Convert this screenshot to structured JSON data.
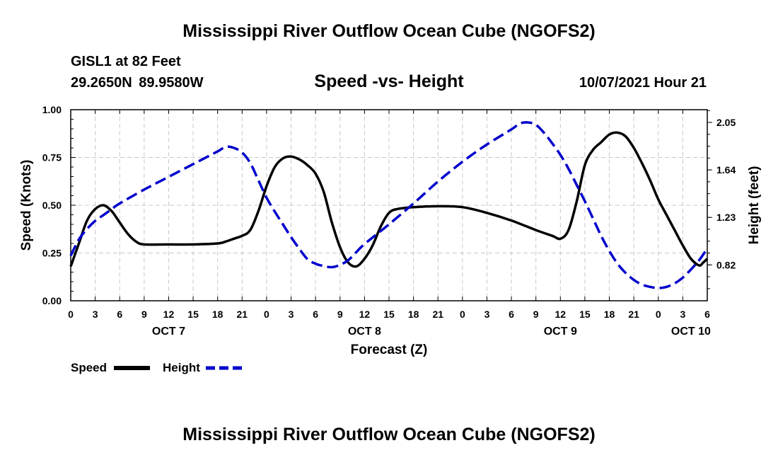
{
  "header": {
    "title": "Mississippi River Outflow Ocean Cube (NGOFS2)",
    "station": "GISL1 at 82 Feet",
    "coordinates": "29.2650N  89.9580W",
    "subtitle": "Speed -vs- Height",
    "datetime": "10/07/2021 Hour 21"
  },
  "footer": {
    "title": "Mississippi River Outflow Ocean Cube (NGOFS2)"
  },
  "chart_data": {
    "type": "line",
    "xlabel": "Forecast (Z)",
    "ylabel": "Speed (Knots)",
    "y2label": "Height (feet)",
    "x_range_hours": [
      0,
      78
    ],
    "ylim": [
      0,
      1
    ],
    "y2lim": [
      0.51,
      2.16
    ],
    "grid": true,
    "x_tick_hours": [
      0,
      3,
      6,
      9,
      12,
      15,
      18,
      21,
      24,
      27,
      30,
      33,
      36,
      39,
      42,
      45,
      48,
      51,
      54,
      57,
      60,
      63,
      66,
      69,
      72,
      75,
      78
    ],
    "x_tick_labels": [
      "0",
      "3",
      "6",
      "9",
      "12",
      "15",
      "18",
      "21",
      "0",
      "3",
      "6",
      "9",
      "12",
      "15",
      "18",
      "21",
      "0",
      "3",
      "6",
      "9",
      "12",
      "15",
      "18",
      "21",
      "0",
      "3",
      "6"
    ],
    "date_labels": [
      {
        "label": "OCT 7",
        "hour": 12
      },
      {
        "label": "OCT 8",
        "hour": 36
      },
      {
        "label": "OCT 9",
        "hour": 60
      },
      {
        "label": "OCT 10",
        "hour": 76
      }
    ],
    "y_ticks": [
      0.0,
      0.25,
      0.5,
      0.75,
      1.0
    ],
    "y_tick_labels": [
      "0.00",
      "0.25",
      "0.50",
      "0.75",
      "1.00"
    ],
    "y2_ticks": [
      0.82,
      1.23,
      1.64,
      2.05
    ],
    "y2_tick_labels": [
      "0.82",
      "1.23",
      "1.64",
      "2.05"
    ],
    "legend": [
      {
        "label": "Speed",
        "color": "#000000",
        "style": "solid"
      },
      {
        "label": "Height",
        "color": "#0000cc",
        "style": "dashed"
      }
    ],
    "series": [
      {
        "name": "Speed",
        "axis": "left",
        "color": "#000000",
        "points": [
          [
            0,
            0.18
          ],
          [
            1,
            0.3
          ],
          [
            2,
            0.42
          ],
          [
            3,
            0.48
          ],
          [
            4,
            0.5
          ],
          [
            5,
            0.47
          ],
          [
            6,
            0.41
          ],
          [
            7,
            0.35
          ],
          [
            8,
            0.31
          ],
          [
            9,
            0.295
          ],
          [
            12,
            0.295
          ],
          [
            15,
            0.295
          ],
          [
            18,
            0.3
          ],
          [
            19,
            0.31
          ],
          [
            20,
            0.325
          ],
          [
            21,
            0.34
          ],
          [
            22,
            0.37
          ],
          [
            23,
            0.47
          ],
          [
            24,
            0.6
          ],
          [
            25,
            0.7
          ],
          [
            26,
            0.745
          ],
          [
            27,
            0.755
          ],
          [
            28,
            0.74
          ],
          [
            29,
            0.71
          ],
          [
            30,
            0.665
          ],
          [
            31,
            0.57
          ],
          [
            32,
            0.41
          ],
          [
            33,
            0.28
          ],
          [
            34,
            0.2
          ],
          [
            35,
            0.18
          ],
          [
            36,
            0.22
          ],
          [
            37,
            0.29
          ],
          [
            38,
            0.39
          ],
          [
            39,
            0.46
          ],
          [
            40,
            0.48
          ],
          [
            42,
            0.49
          ],
          [
            45,
            0.495
          ],
          [
            48,
            0.49
          ],
          [
            51,
            0.46
          ],
          [
            54,
            0.42
          ],
          [
            57,
            0.37
          ],
          [
            59,
            0.34
          ],
          [
            60,
            0.325
          ],
          [
            61,
            0.37
          ],
          [
            62,
            0.52
          ],
          [
            63,
            0.71
          ],
          [
            64,
            0.79
          ],
          [
            65,
            0.83
          ],
          [
            66,
            0.87
          ],
          [
            67,
            0.88
          ],
          [
            68,
            0.86
          ],
          [
            69,
            0.8
          ],
          [
            70,
            0.72
          ],
          [
            71,
            0.63
          ],
          [
            72,
            0.53
          ],
          [
            73,
            0.45
          ],
          [
            74,
            0.37
          ],
          [
            75,
            0.29
          ],
          [
            76,
            0.22
          ],
          [
            77,
            0.185
          ],
          [
            77.5,
            0.2
          ],
          [
            78,
            0.22
          ]
        ]
      },
      {
        "name": "Height",
        "axis": "right",
        "color": "#0000cc",
        "points": [
          [
            0,
            0.9
          ],
          [
            1,
            1.04
          ],
          [
            2,
            1.13
          ],
          [
            3,
            1.2
          ],
          [
            4,
            1.25
          ],
          [
            5,
            1.3
          ],
          [
            6,
            1.35
          ],
          [
            9,
            1.47
          ],
          [
            12,
            1.58
          ],
          [
            15,
            1.69
          ],
          [
            18,
            1.8
          ],
          [
            19,
            1.84
          ],
          [
            20,
            1.83
          ],
          [
            21,
            1.79
          ],
          [
            22,
            1.7
          ],
          [
            23,
            1.55
          ],
          [
            24,
            1.4
          ],
          [
            25,
            1.28
          ],
          [
            26,
            1.17
          ],
          [
            27,
            1.06
          ],
          [
            28,
            0.96
          ],
          [
            29,
            0.87
          ],
          [
            30,
            0.83
          ],
          [
            31,
            0.81
          ],
          [
            32,
            0.8
          ],
          [
            33,
            0.82
          ],
          [
            34,
            0.86
          ],
          [
            35,
            0.93
          ],
          [
            36,
            1.0
          ],
          [
            39,
            1.17
          ],
          [
            42,
            1.35
          ],
          [
            45,
            1.54
          ],
          [
            48,
            1.71
          ],
          [
            51,
            1.86
          ],
          [
            54,
            1.99
          ],
          [
            55,
            2.04
          ],
          [
            56,
            2.05
          ],
          [
            57,
            2.03
          ],
          [
            58,
            1.96
          ],
          [
            59,
            1.87
          ],
          [
            60,
            1.77
          ],
          [
            61,
            1.65
          ],
          [
            62,
            1.51
          ],
          [
            63,
            1.37
          ],
          [
            64,
            1.22
          ],
          [
            65,
            1.07
          ],
          [
            66,
            0.94
          ],
          [
            67,
            0.83
          ],
          [
            68,
            0.75
          ],
          [
            69,
            0.69
          ],
          [
            70,
            0.65
          ],
          [
            71,
            0.63
          ],
          [
            72,
            0.62
          ],
          [
            73,
            0.63
          ],
          [
            74,
            0.66
          ],
          [
            75,
            0.71
          ],
          [
            76,
            0.78
          ],
          [
            77,
            0.86
          ],
          [
            78,
            0.96
          ]
        ]
      }
    ]
  }
}
